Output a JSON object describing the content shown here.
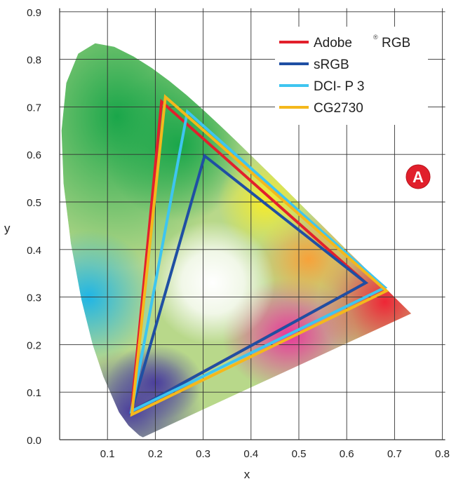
{
  "chart_data": {
    "type": "line",
    "title": "",
    "xlabel": "x",
    "ylabel": "y",
    "xlim": [
      0.0,
      0.8
    ],
    "ylim": [
      0.0,
      0.9
    ],
    "grid": true,
    "x_ticks": [
      "0.1",
      "0.2",
      "0.3",
      "0.4",
      "0.5",
      "0.6",
      "0.7",
      "0.8"
    ],
    "y_ticks": [
      "0.0",
      "0.1",
      "0.2",
      "0.3",
      "0.4",
      "0.5",
      "0.6",
      "0.7",
      "0.8",
      "0.9"
    ],
    "legend_position": "top-right",
    "badge": "A",
    "spectral_locus": [
      [
        0.1741,
        0.005
      ],
      [
        0.1666,
        0.0089
      ],
      [
        0.144,
        0.0297
      ],
      [
        0.1241,
        0.0578
      ],
      [
        0.0913,
        0.1327
      ],
      [
        0.0687,
        0.2007
      ],
      [
        0.0454,
        0.295
      ],
      [
        0.0235,
        0.4127
      ],
      [
        0.0082,
        0.5384
      ],
      [
        0.0039,
        0.65
      ],
      [
        0.0139,
        0.7502
      ],
      [
        0.0389,
        0.812
      ],
      [
        0.0743,
        0.8338
      ],
      [
        0.1142,
        0.8262
      ],
      [
        0.1547,
        0.8059
      ],
      [
        0.1929,
        0.7816
      ],
      [
        0.2296,
        0.7543
      ],
      [
        0.2658,
        0.7243
      ],
      [
        0.3016,
        0.6923
      ],
      [
        0.3373,
        0.6589
      ],
      [
        0.3731,
        0.6245
      ],
      [
        0.4087,
        0.5896
      ],
      [
        0.4441,
        0.5547
      ],
      [
        0.4788,
        0.5202
      ],
      [
        0.5125,
        0.4866
      ],
      [
        0.5448,
        0.4544
      ],
      [
        0.5752,
        0.4242
      ],
      [
        0.6029,
        0.3965
      ],
      [
        0.627,
        0.3725
      ],
      [
        0.6482,
        0.3514
      ],
      [
        0.6658,
        0.334
      ],
      [
        0.6915,
        0.3083
      ],
      [
        0.7347,
        0.2653
      ]
    ],
    "series": [
      {
        "name": "Adobe",
        "name_suffix": "RGB",
        "superscript": "®",
        "color": "#e2202c",
        "points": [
          [
            0.64,
            0.33
          ],
          [
            0.213,
            0.711
          ],
          [
            0.15,
            0.06
          ]
        ]
      },
      {
        "name": "sRGB",
        "color": "#1f4fa3",
        "points": [
          [
            0.64,
            0.33
          ],
          [
            0.303,
            0.597
          ],
          [
            0.15,
            0.06
          ]
        ]
      },
      {
        "name": "DCI- P 3",
        "color": "#3ec5f0",
        "points": [
          [
            0.68,
            0.32
          ],
          [
            0.267,
            0.69
          ],
          [
            0.15,
            0.06
          ]
        ]
      },
      {
        "name": "CG2730",
        "color": "#f4b81c",
        "points": [
          [
            0.683,
            0.313
          ],
          [
            0.221,
            0.721
          ],
          [
            0.151,
            0.053
          ]
        ]
      }
    ]
  }
}
